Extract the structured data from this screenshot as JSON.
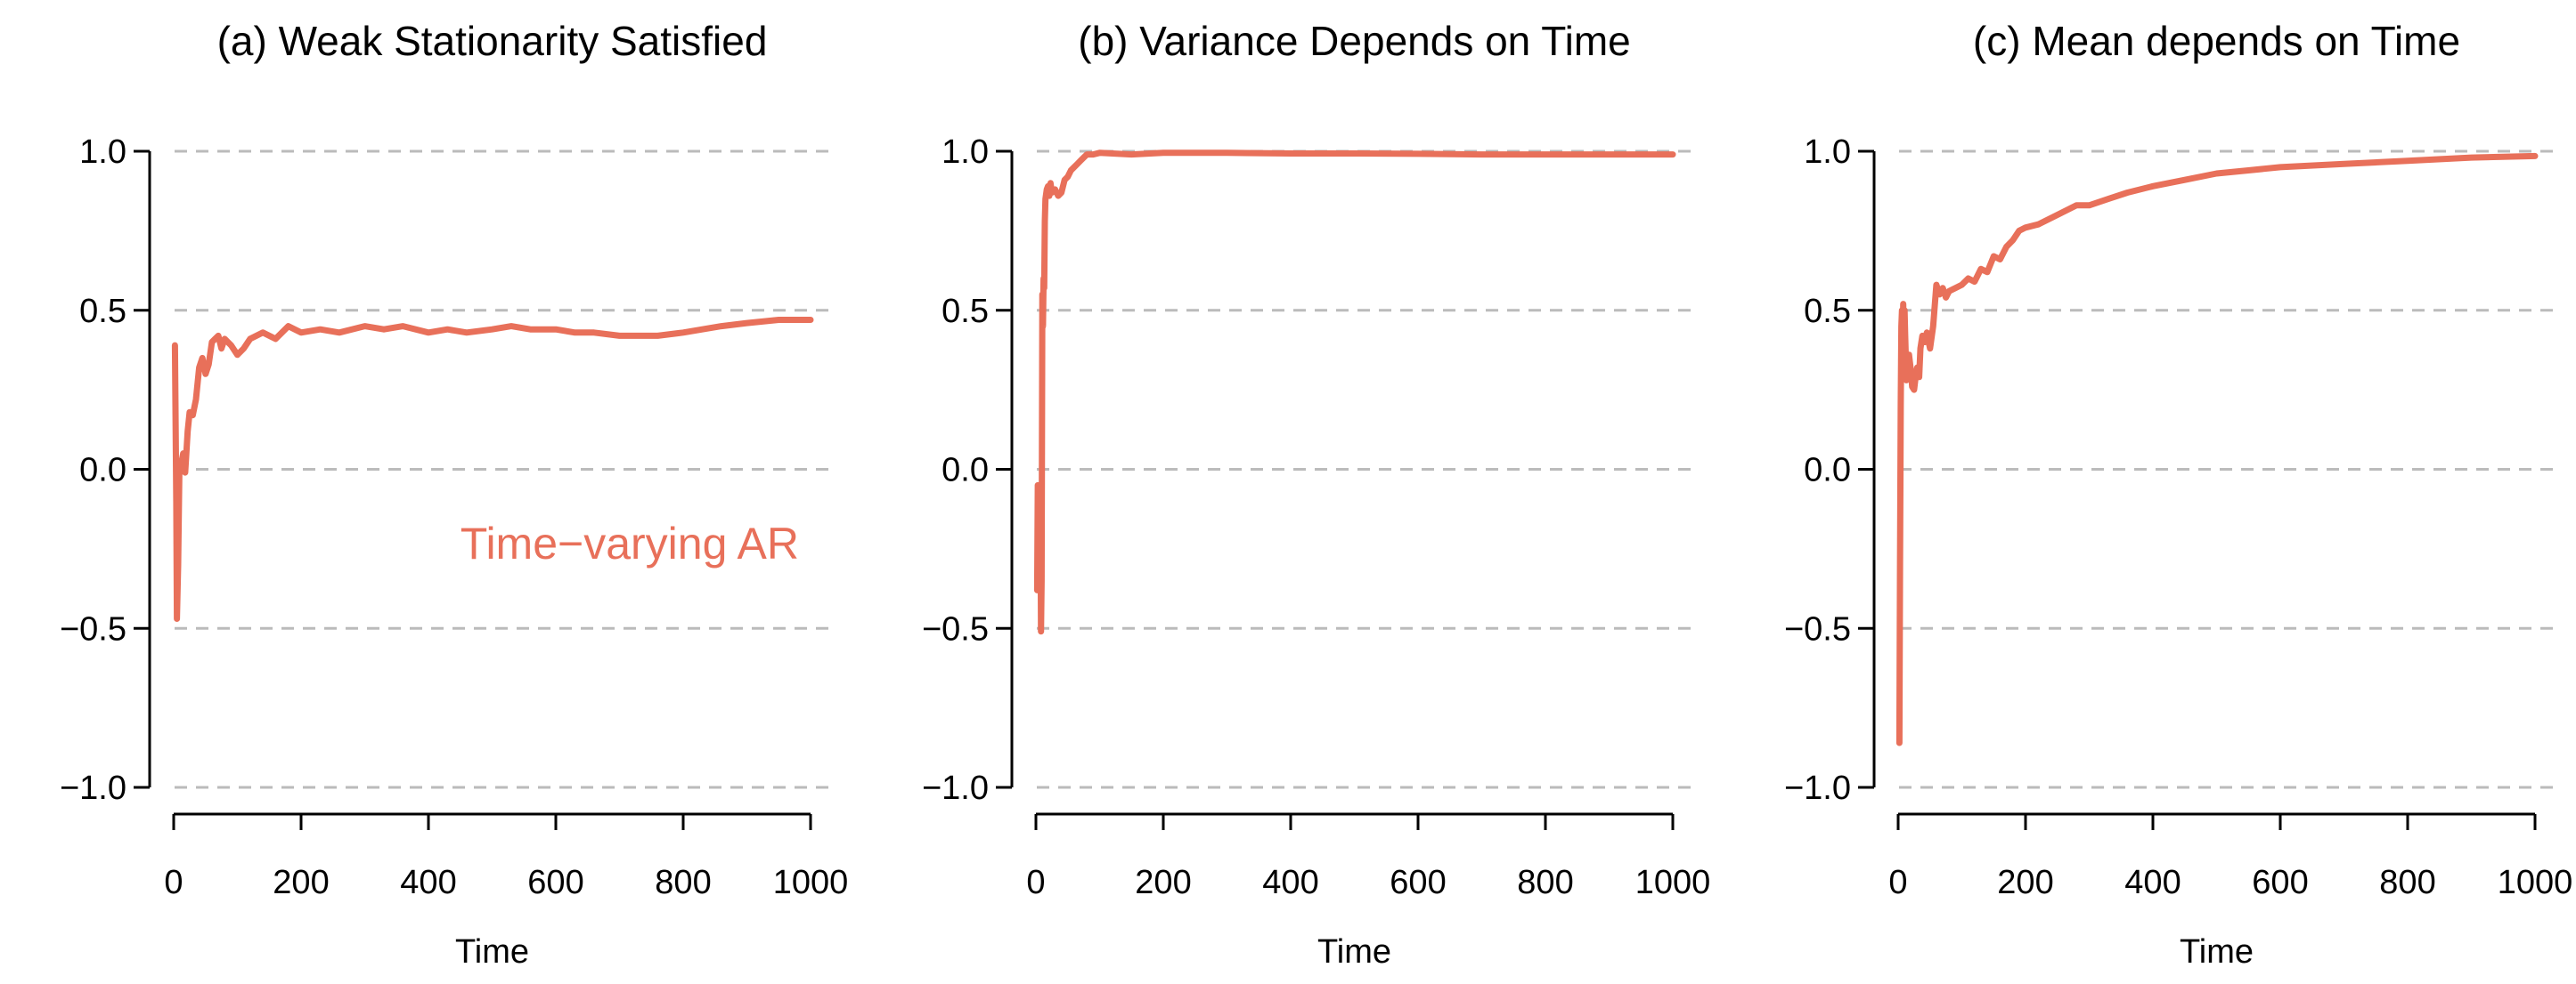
{
  "colors": {
    "series": "#E8705A",
    "grid": "#BBBBBB",
    "axis": "#000000"
  },
  "chart_data": [
    {
      "type": "line",
      "title": "(a) Weak Stationarity Satisfied",
      "xlabel": "Time",
      "ylabel": "",
      "xlim": [
        0,
        1000
      ],
      "ylim": [
        -1.0,
        1.0
      ],
      "x_ticks": [
        0,
        200,
        400,
        600,
        800,
        1000
      ],
      "y_ticks": [
        1.0,
        0.5,
        0.0,
        -0.5,
        -1.0
      ],
      "y_tick_labels": [
        "1.0",
        "0.5",
        "0.0",
        "−0.5",
        "−1.0"
      ],
      "grid": "horizontal dashed",
      "annotation": "Time−varying AR",
      "series": [
        {
          "x": [
            2,
            4,
            5,
            7,
            9,
            12,
            15,
            18,
            22,
            25,
            30,
            35,
            40,
            45,
            50,
            55,
            60,
            65,
            70,
            75,
            80,
            90,
            100,
            110,
            120,
            140,
            160,
            180,
            200,
            230,
            260,
            300,
            330,
            360,
            400,
            430,
            460,
            500,
            530,
            560,
            600,
            630,
            660,
            700,
            730,
            760,
            800,
            830,
            860,
            900,
            950,
            1000
          ],
          "y": [
            0.39,
            -0.1,
            -0.47,
            -0.3,
            0.0,
            0.02,
            0.05,
            -0.01,
            0.12,
            0.18,
            0.17,
            0.22,
            0.32,
            0.35,
            0.3,
            0.33,
            0.4,
            0.41,
            0.42,
            0.38,
            0.41,
            0.39,
            0.36,
            0.38,
            0.41,
            0.43,
            0.41,
            0.45,
            0.43,
            0.44,
            0.43,
            0.45,
            0.44,
            0.45,
            0.43,
            0.44,
            0.43,
            0.44,
            0.45,
            0.44,
            0.44,
            0.43,
            0.43,
            0.42,
            0.42,
            0.42,
            0.43,
            0.44,
            0.45,
            0.46,
            0.47,
            0.47
          ]
        }
      ]
    },
    {
      "type": "line",
      "title": "(b) Variance Depends on Time",
      "xlabel": "Time",
      "ylabel": "",
      "xlim": [
        0,
        1000
      ],
      "ylim": [
        -1.0,
        1.0
      ],
      "x_ticks": [
        0,
        200,
        400,
        600,
        800,
        1000
      ],
      "y_ticks": [
        1.0,
        0.5,
        0.0,
        -0.5,
        -1.0
      ],
      "y_tick_labels": [
        "1.0",
        "0.5",
        "0.0",
        "−0.5",
        "−1.0"
      ],
      "grid": "horizontal dashed",
      "series": [
        {
          "x": [
            2,
            3,
            4,
            5,
            6,
            7,
            8,
            9,
            10,
            11,
            12,
            13,
            14,
            15,
            17,
            19,
            21,
            23,
            25,
            30,
            35,
            40,
            45,
            50,
            55,
            60,
            65,
            70,
            75,
            80,
            90,
            100,
            150,
            200,
            300,
            400,
            500,
            600,
            700,
            800,
            900,
            1000
          ],
          "y": [
            -0.38,
            -0.05,
            -0.2,
            -0.3,
            -0.2,
            -0.05,
            -0.51,
            -0.35,
            0.55,
            0.45,
            0.6,
            0.57,
            0.78,
            0.85,
            0.88,
            0.89,
            0.86,
            0.9,
            0.87,
            0.88,
            0.86,
            0.87,
            0.91,
            0.92,
            0.94,
            0.95,
            0.96,
            0.97,
            0.98,
            0.99,
            0.99,
            0.995,
            0.99,
            0.995,
            0.995,
            0.993,
            0.993,
            0.992,
            0.99,
            0.99,
            0.99,
            0.99
          ]
        }
      ]
    },
    {
      "type": "line",
      "title": "(c) Mean depends on Time",
      "xlabel": "Time",
      "ylabel": "",
      "xlim": [
        0,
        1000
      ],
      "ylim": [
        -1.0,
        1.0
      ],
      "x_ticks": [
        0,
        200,
        400,
        600,
        800,
        1000
      ],
      "y_ticks": [
        1.0,
        0.5,
        0.0,
        -0.5,
        -1.0
      ],
      "y_tick_labels": [
        "1.0",
        "0.5",
        "0.0",
        "−0.5",
        "−1.0"
      ],
      "grid": "horizontal dashed",
      "series": [
        {
          "x": [
            2,
            3,
            4,
            5,
            6,
            7,
            8,
            9,
            10,
            11,
            12,
            13,
            14,
            15,
            17,
            20,
            22,
            25,
            28,
            30,
            33,
            35,
            38,
            42,
            45,
            50,
            55,
            60,
            65,
            70,
            75,
            80,
            90,
            100,
            110,
            120,
            130,
            140,
            150,
            160,
            170,
            180,
            190,
            200,
            220,
            250,
            280,
            300,
            330,
            360,
            400,
            450,
            500,
            550,
            600,
            700,
            800,
            900,
            1000
          ],
          "y": [
            -0.86,
            -0.3,
            0.2,
            0.45,
            0.5,
            0.38,
            0.52,
            0.3,
            0.5,
            0.42,
            0.35,
            0.28,
            0.33,
            0.3,
            0.36,
            0.31,
            0.26,
            0.25,
            0.3,
            0.32,
            0.29,
            0.38,
            0.42,
            0.4,
            0.43,
            0.38,
            0.45,
            0.58,
            0.55,
            0.57,
            0.54,
            0.56,
            0.57,
            0.58,
            0.6,
            0.59,
            0.63,
            0.62,
            0.67,
            0.66,
            0.7,
            0.72,
            0.75,
            0.76,
            0.77,
            0.8,
            0.83,
            0.83,
            0.85,
            0.87,
            0.89,
            0.91,
            0.93,
            0.94,
            0.95,
            0.96,
            0.97,
            0.98,
            0.985
          ]
        }
      ]
    }
  ]
}
